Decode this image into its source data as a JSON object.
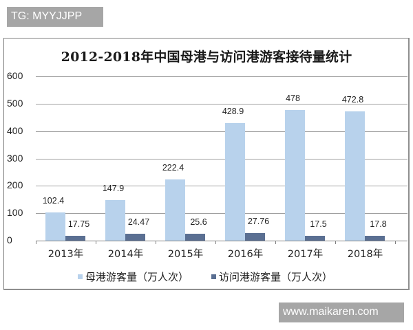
{
  "watermarks": {
    "top": "TG: MYYJJPP",
    "bottom": "www.maikaren.com"
  },
  "chart_data": {
    "type": "bar",
    "title": "2012-2018年中国母港与访问港游客接待量统计",
    "categories": [
      "2013年",
      "2014年",
      "2015年",
      "2016年",
      "2017年",
      "2018年"
    ],
    "series": [
      {
        "name": "母港游客量（万人次）",
        "color": "#b8d2ec",
        "values": [
          102.4,
          147.9,
          222.4,
          428.9,
          478,
          472.8
        ],
        "labels": [
          "102.4",
          "147.9",
          "222.4",
          "428.9",
          "478",
          "472.8"
        ]
      },
      {
        "name": "访问港游客量（万人次）",
        "color": "#5a6f92",
        "values": [
          17.75,
          24.47,
          25.6,
          27.76,
          17.5,
          17.8
        ],
        "labels": [
          "17.75",
          "24.47",
          "25.6",
          "27.76",
          "17.5",
          "17.8"
        ]
      }
    ],
    "yticks": [
      "0",
      "100",
      "200",
      "300",
      "400",
      "500",
      "600"
    ],
    "ylim": [
      0,
      600
    ],
    "xlabel": "",
    "ylabel": "",
    "grid": true,
    "legend_position": "bottom"
  }
}
